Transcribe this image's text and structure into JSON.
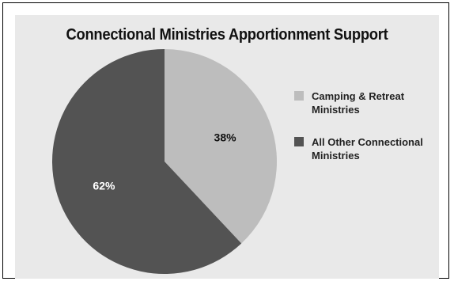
{
  "chart_data": {
    "type": "pie",
    "title": "Connectional Ministries Apportionment Support",
    "slices": [
      {
        "label": "Camping & Retreat Ministries",
        "value": 38,
        "display": "38%",
        "color": "#bdbdbd"
      },
      {
        "label": "All Other Connectional Ministries",
        "value": 62,
        "display": "62%",
        "color": "#535353"
      }
    ],
    "legend_position": "right"
  },
  "colors": {
    "panel_background": "#e9e9e9",
    "data_label_text": "#ffffff",
    "camping_label_text": "#111111"
  }
}
